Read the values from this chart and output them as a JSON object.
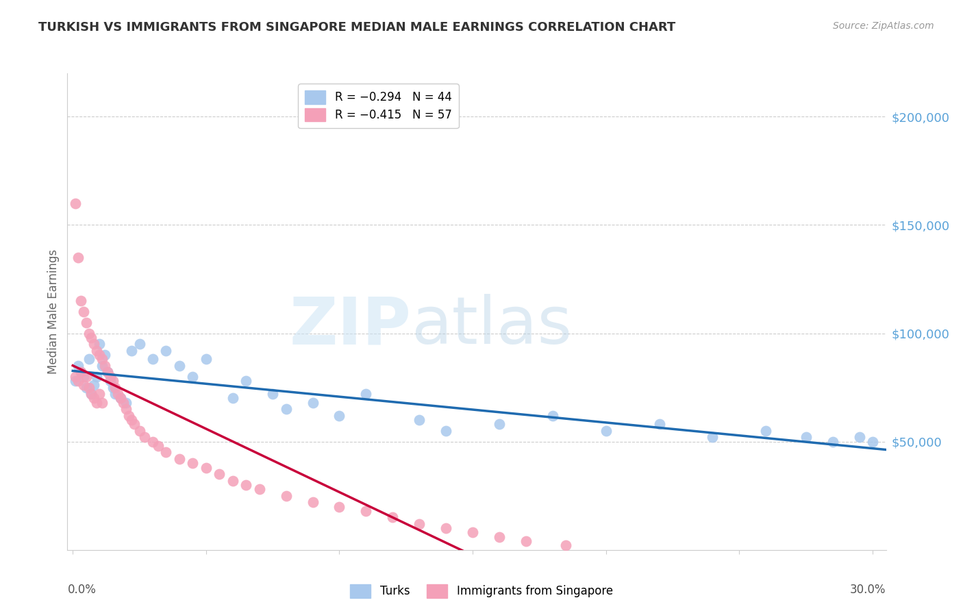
{
  "title": "TURKISH VS IMMIGRANTS FROM SINGAPORE MEDIAN MALE EARNINGS CORRELATION CHART",
  "source": "Source: ZipAtlas.com",
  "ylabel": "Median Male Earnings",
  "ytick_labels": [
    "$200,000",
    "$150,000",
    "$100,000",
    "$50,000"
  ],
  "ytick_values": [
    200000,
    150000,
    100000,
    50000
  ],
  "ymin": 0,
  "ymax": 220000,
  "xmin": -0.002,
  "xmax": 0.305,
  "color_blue": "#A8C8ED",
  "color_pink": "#F4A0B8",
  "color_blue_line": "#1F6BB0",
  "color_pink_line": "#C8003A",
  "color_ytick": "#5BA3D9",
  "turks_x": [
    0.001,
    0.002,
    0.003,
    0.004,
    0.005,
    0.006,
    0.007,
    0.008,
    0.009,
    0.01,
    0.011,
    0.012,
    0.013,
    0.014,
    0.015,
    0.016,
    0.018,
    0.02,
    0.022,
    0.025,
    0.03,
    0.035,
    0.04,
    0.045,
    0.05,
    0.06,
    0.065,
    0.075,
    0.08,
    0.09,
    0.1,
    0.11,
    0.13,
    0.14,
    0.16,
    0.18,
    0.2,
    0.22,
    0.24,
    0.26,
    0.275,
    0.285,
    0.295,
    0.3
  ],
  "turks_y": [
    78000,
    85000,
    82000,
    80000,
    75000,
    88000,
    72000,
    76000,
    80000,
    95000,
    85000,
    90000,
    82000,
    78000,
    75000,
    72000,
    70000,
    68000,
    92000,
    95000,
    88000,
    92000,
    85000,
    80000,
    88000,
    70000,
    78000,
    72000,
    65000,
    68000,
    62000,
    72000,
    60000,
    55000,
    58000,
    62000,
    55000,
    58000,
    52000,
    55000,
    52000,
    50000,
    52000,
    50000
  ],
  "singapore_x": [
    0.001,
    0.001,
    0.002,
    0.002,
    0.003,
    0.003,
    0.004,
    0.004,
    0.005,
    0.005,
    0.006,
    0.006,
    0.007,
    0.007,
    0.008,
    0.008,
    0.009,
    0.009,
    0.01,
    0.01,
    0.011,
    0.011,
    0.012,
    0.013,
    0.014,
    0.015,
    0.016,
    0.017,
    0.018,
    0.019,
    0.02,
    0.021,
    0.022,
    0.023,
    0.025,
    0.027,
    0.03,
    0.032,
    0.035,
    0.04,
    0.045,
    0.05,
    0.055,
    0.06,
    0.065,
    0.07,
    0.08,
    0.09,
    0.1,
    0.11,
    0.12,
    0.13,
    0.14,
    0.15,
    0.16,
    0.17,
    0.185
  ],
  "singapore_y": [
    160000,
    80000,
    135000,
    78000,
    115000,
    82000,
    110000,
    76000,
    105000,
    80000,
    100000,
    75000,
    98000,
    72000,
    95000,
    70000,
    92000,
    68000,
    90000,
    72000,
    88000,
    68000,
    85000,
    82000,
    80000,
    78000,
    75000,
    72000,
    70000,
    68000,
    65000,
    62000,
    60000,
    58000,
    55000,
    52000,
    50000,
    48000,
    45000,
    42000,
    40000,
    38000,
    35000,
    32000,
    30000,
    28000,
    25000,
    22000,
    20000,
    18000,
    15000,
    12000,
    10000,
    8000,
    6000,
    4000,
    2000
  ]
}
